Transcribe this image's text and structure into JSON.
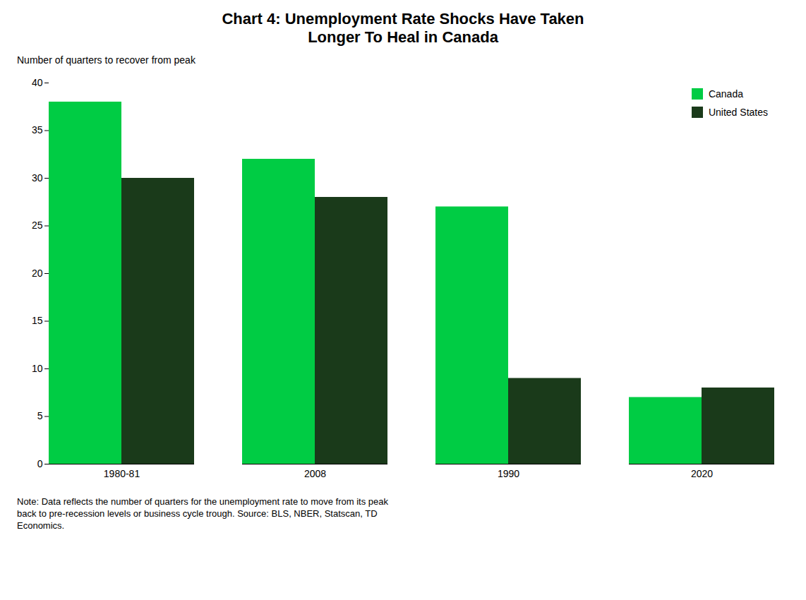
{
  "chart_data": {
    "type": "bar",
    "title": "Chart 4: Unemployment Rate Shocks Have Taken\nLonger To Heal in Canada",
    "ylabel": "Number of quarters to recover from peak",
    "categories": [
      "1980-81",
      "2008",
      "1990",
      "2020"
    ],
    "series": [
      {
        "name": "Canada",
        "color": "#00CC44",
        "values": [
          38,
          32,
          27,
          7
        ]
      },
      {
        "name": "United States",
        "color": "#1A3A1A",
        "values": [
          30,
          28,
          9,
          8
        ]
      }
    ],
    "ylim": [
      0,
      40
    ],
    "yticks": [
      0,
      5,
      10,
      15,
      20,
      25,
      30,
      35,
      40
    ],
    "grid": false,
    "legend": "upper right",
    "note": "Note: Data reflects the number of quarters for the unemployment rate to move from its peak\nback to pre-recession levels or business cycle trough. Source: BLS, NBER, Statscan, TD\nEconomics."
  }
}
